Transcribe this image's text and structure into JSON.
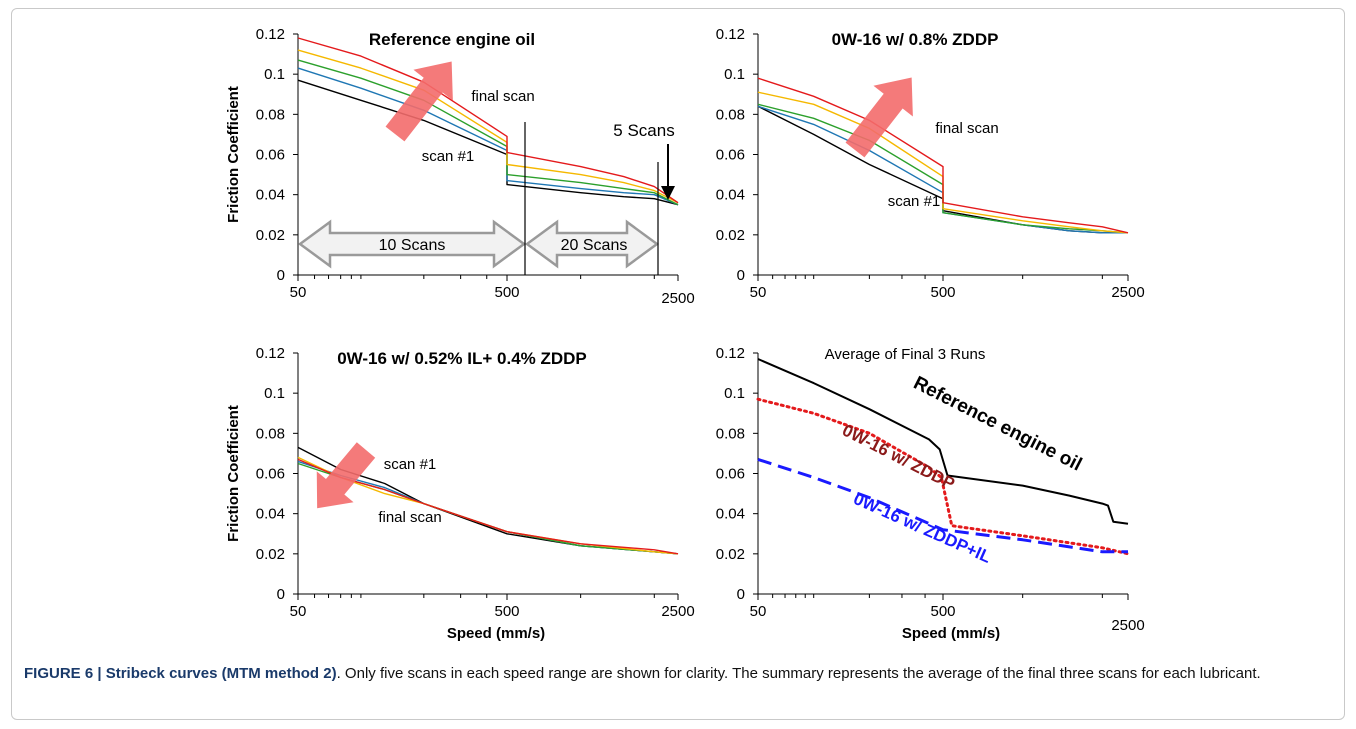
{
  "figure": {
    "caption": {
      "label": "FIGURE 6 | Stribeck curves (MTM method 2)",
      "text": ". Only five scans in each speed range are shown for clarity. The summary represents the average of the final three scans for each lubricant."
    }
  },
  "colors": {
    "scan_1": "#000000",
    "scan_2": "#1f77b4",
    "scan_3": "#2ca02c",
    "scan_4": "#f5b800",
    "scan_5": "#e41a1c",
    "arrow": "#f36b6b",
    "reference_oil": "#000000",
    "zddp": "#e41a1c",
    "zddp_il": "#1a1aff",
    "zddp_label": "#8b1a1a"
  },
  "chart_data": [
    {
      "type": "line",
      "title": "Reference engine oil",
      "ylabel": "Friction Coefficient",
      "xlabel": "",
      "x_scale": "log",
      "xlim": [
        50,
        2500
      ],
      "ylim": [
        0,
        0.12
      ],
      "x_ticks": [
        "50",
        "500",
        "2500"
      ],
      "y_ticks": [
        "0",
        "0.02",
        "0.04",
        "0.06",
        "0.08",
        "0.1",
        "0.12"
      ],
      "annotations": [
        "final scan",
        "scan #1",
        "5 Scans",
        "10 Scans",
        "20 Scans"
      ],
      "series": [
        {
          "color_key": "scan_1",
          "points": [
            [
              50,
              0.097
            ],
            [
              100,
              0.087
            ],
            [
              200,
              0.077
            ],
            [
              500,
              0.06
            ],
            [
              500,
              0.045
            ],
            [
              1000,
              0.041
            ],
            [
              1500,
              0.039
            ],
            [
              2000,
              0.038
            ],
            [
              2500,
              0.035
            ]
          ]
        },
        {
          "color_key": "scan_2",
          "points": [
            [
              50,
              0.103
            ],
            [
              100,
              0.093
            ],
            [
              200,
              0.082
            ],
            [
              500,
              0.062
            ],
            [
              500,
              0.047
            ],
            [
              1000,
              0.043
            ],
            [
              1500,
              0.041
            ],
            [
              2000,
              0.04
            ],
            [
              2500,
              0.035
            ]
          ]
        },
        {
          "color_key": "scan_3",
          "points": [
            [
              50,
              0.107
            ],
            [
              100,
              0.098
            ],
            [
              200,
              0.087
            ],
            [
              500,
              0.064
            ],
            [
              500,
              0.05
            ],
            [
              1000,
              0.046
            ],
            [
              1500,
              0.043
            ],
            [
              2000,
              0.041
            ],
            [
              2500,
              0.035
            ]
          ]
        },
        {
          "color_key": "scan_4",
          "points": [
            [
              50,
              0.112
            ],
            [
              100,
              0.103
            ],
            [
              200,
              0.092
            ],
            [
              500,
              0.066
            ],
            [
              500,
              0.055
            ],
            [
              1000,
              0.05
            ],
            [
              1500,
              0.046
            ],
            [
              2000,
              0.042
            ],
            [
              2500,
              0.036
            ]
          ]
        },
        {
          "color_key": "scan_5",
          "points": [
            [
              50,
              0.118
            ],
            [
              100,
              0.109
            ],
            [
              200,
              0.096
            ],
            [
              500,
              0.069
            ],
            [
              500,
              0.061
            ],
            [
              1000,
              0.054
            ],
            [
              1500,
              0.049
            ],
            [
              2000,
              0.044
            ],
            [
              2500,
              0.036
            ]
          ]
        }
      ]
    },
    {
      "type": "line",
      "title": "0W-16 w/ 0.8% ZDDP",
      "ylabel": "",
      "xlabel": "",
      "x_scale": "log",
      "xlim": [
        50,
        2500
      ],
      "ylim": [
        0,
        0.12
      ],
      "x_ticks": [
        "50",
        "500",
        "2500"
      ],
      "y_ticks": [
        "0",
        "0.02",
        "0.04",
        "0.06",
        "0.08",
        "0.1",
        "0.12"
      ],
      "annotations": [
        "final scan",
        "scan #1"
      ],
      "series": [
        {
          "color_key": "scan_1",
          "points": [
            [
              50,
              0.084
            ],
            [
              100,
              0.07
            ],
            [
              200,
              0.055
            ],
            [
              500,
              0.038
            ],
            [
              500,
              0.032
            ],
            [
              1000,
              0.025
            ],
            [
              1500,
              0.022
            ],
            [
              2000,
              0.021
            ],
            [
              2500,
              0.021
            ]
          ]
        },
        {
          "color_key": "scan_2",
          "points": [
            [
              50,
              0.084
            ],
            [
              100,
              0.075
            ],
            [
              200,
              0.062
            ],
            [
              500,
              0.041
            ],
            [
              500,
              0.031
            ],
            [
              1000,
              0.025
            ],
            [
              1500,
              0.022
            ],
            [
              2000,
              0.021
            ],
            [
              2500,
              0.021
            ]
          ]
        },
        {
          "color_key": "scan_3",
          "points": [
            [
              50,
              0.085
            ],
            [
              100,
              0.078
            ],
            [
              200,
              0.067
            ],
            [
              500,
              0.045
            ],
            [
              500,
              0.031
            ],
            [
              1000,
              0.025
            ],
            [
              1500,
              0.023
            ],
            [
              2000,
              0.022
            ],
            [
              2500,
              0.021
            ]
          ]
        },
        {
          "color_key": "scan_4",
          "points": [
            [
              50,
              0.091
            ],
            [
              100,
              0.085
            ],
            [
              200,
              0.073
            ],
            [
              500,
              0.049
            ],
            [
              500,
              0.033
            ],
            [
              1000,
              0.027
            ],
            [
              1500,
              0.024
            ],
            [
              2000,
              0.022
            ],
            [
              2500,
              0.021
            ]
          ]
        },
        {
          "color_key": "scan_5",
          "points": [
            [
              50,
              0.098
            ],
            [
              100,
              0.089
            ],
            [
              200,
              0.077
            ],
            [
              500,
              0.054
            ],
            [
              500,
              0.036
            ],
            [
              1000,
              0.029
            ],
            [
              1500,
              0.026
            ],
            [
              2000,
              0.024
            ],
            [
              2500,
              0.021
            ]
          ]
        }
      ]
    },
    {
      "type": "line",
      "title": "0W-16 w/ 0.52% IL+ 0.4% ZDDP",
      "ylabel": "Friction Coefficient",
      "xlabel": "Speed (mm/s)",
      "x_scale": "log",
      "xlim": [
        50,
        2500
      ],
      "ylim": [
        0,
        0.12
      ],
      "x_ticks": [
        "50",
        "500",
        "2500"
      ],
      "y_ticks": [
        "0",
        "0.02",
        "0.04",
        "0.06",
        "0.08",
        "0.1",
        "0.12"
      ],
      "annotations": [
        "scan #1",
        "final scan"
      ],
      "series": [
        {
          "color_key": "scan_1",
          "points": [
            [
              50,
              0.073
            ],
            [
              80,
              0.062
            ],
            [
              130,
              0.055
            ],
            [
              200,
              0.045
            ],
            [
              500,
              0.03
            ],
            [
              1000,
              0.024
            ],
            [
              2000,
              0.021
            ],
            [
              2500,
              0.02
            ]
          ]
        },
        {
          "color_key": "scan_2",
          "points": [
            [
              50,
              0.066
            ],
            [
              80,
              0.059
            ],
            [
              130,
              0.053
            ],
            [
              200,
              0.045
            ],
            [
              500,
              0.031
            ],
            [
              1000,
              0.024
            ],
            [
              2000,
              0.021
            ],
            [
              2500,
              0.02
            ]
          ]
        },
        {
          "color_key": "scan_3",
          "points": [
            [
              50,
              0.065
            ],
            [
              80,
              0.058
            ],
            [
              130,
              0.052
            ],
            [
              200,
              0.045
            ],
            [
              500,
              0.031
            ],
            [
              1000,
              0.024
            ],
            [
              2000,
              0.021
            ],
            [
              2500,
              0.02
            ]
          ]
        },
        {
          "color_key": "scan_4",
          "points": [
            [
              50,
              0.068
            ],
            [
              80,
              0.058
            ],
            [
              130,
              0.05
            ],
            [
              200,
              0.045
            ],
            [
              500,
              0.031
            ],
            [
              1000,
              0.025
            ],
            [
              2000,
              0.021
            ],
            [
              2500,
              0.02
            ]
          ]
        },
        {
          "color_key": "scan_5",
          "points": [
            [
              50,
              0.067
            ],
            [
              80,
              0.058
            ],
            [
              130,
              0.052
            ],
            [
              200,
              0.045
            ],
            [
              500,
              0.031
            ],
            [
              1000,
              0.025
            ],
            [
              2000,
              0.022
            ],
            [
              2500,
              0.02
            ]
          ]
        }
      ]
    },
    {
      "type": "line",
      "title": "Average of  Final 3 Runs",
      "ylabel": "",
      "xlabel": "Speed (mm/s)",
      "x_scale": "log",
      "xlim": [
        50,
        2500
      ],
      "ylim": [
        0,
        0.12
      ],
      "x_ticks": [
        "50",
        "500",
        "2500"
      ],
      "y_ticks": [
        "0",
        "0.02",
        "0.04",
        "0.06",
        "0.08",
        "0.1",
        "0.12"
      ],
      "series": [
        {
          "name": "Reference engine oil",
          "color_key": "reference_oil",
          "dash": "solid",
          "points": [
            [
              50,
              0.117
            ],
            [
              100,
              0.105
            ],
            [
              200,
              0.092
            ],
            [
              420,
              0.077
            ],
            [
              480,
              0.072
            ],
            [
              520,
              0.059
            ],
            [
              1000,
              0.054
            ],
            [
              1500,
              0.049
            ],
            [
              2000,
              0.045
            ],
            [
              2100,
              0.044
            ],
            [
              2200,
              0.036
            ],
            [
              2500,
              0.035
            ]
          ]
        },
        {
          "name": "0W-16 w/ ZDDP",
          "color_key": "zddp",
          "dash": "dotted",
          "points": [
            [
              50,
              0.097
            ],
            [
              100,
              0.09
            ],
            [
              200,
              0.08
            ],
            [
              420,
              0.063
            ],
            [
              490,
              0.058
            ],
            [
              540,
              0.034
            ],
            [
              1000,
              0.029
            ],
            [
              2000,
              0.023
            ],
            [
              2500,
              0.02
            ]
          ]
        },
        {
          "name": "0W-16 w/ ZDDP+IL",
          "color_key": "zddp_il",
          "dash": "dashed",
          "points": [
            [
              50,
              0.067
            ],
            [
              100,
              0.058
            ],
            [
              200,
              0.048
            ],
            [
              500,
              0.032
            ],
            [
              1000,
              0.027
            ],
            [
              2000,
              0.021
            ],
            [
              2500,
              0.021
            ]
          ]
        }
      ]
    }
  ]
}
